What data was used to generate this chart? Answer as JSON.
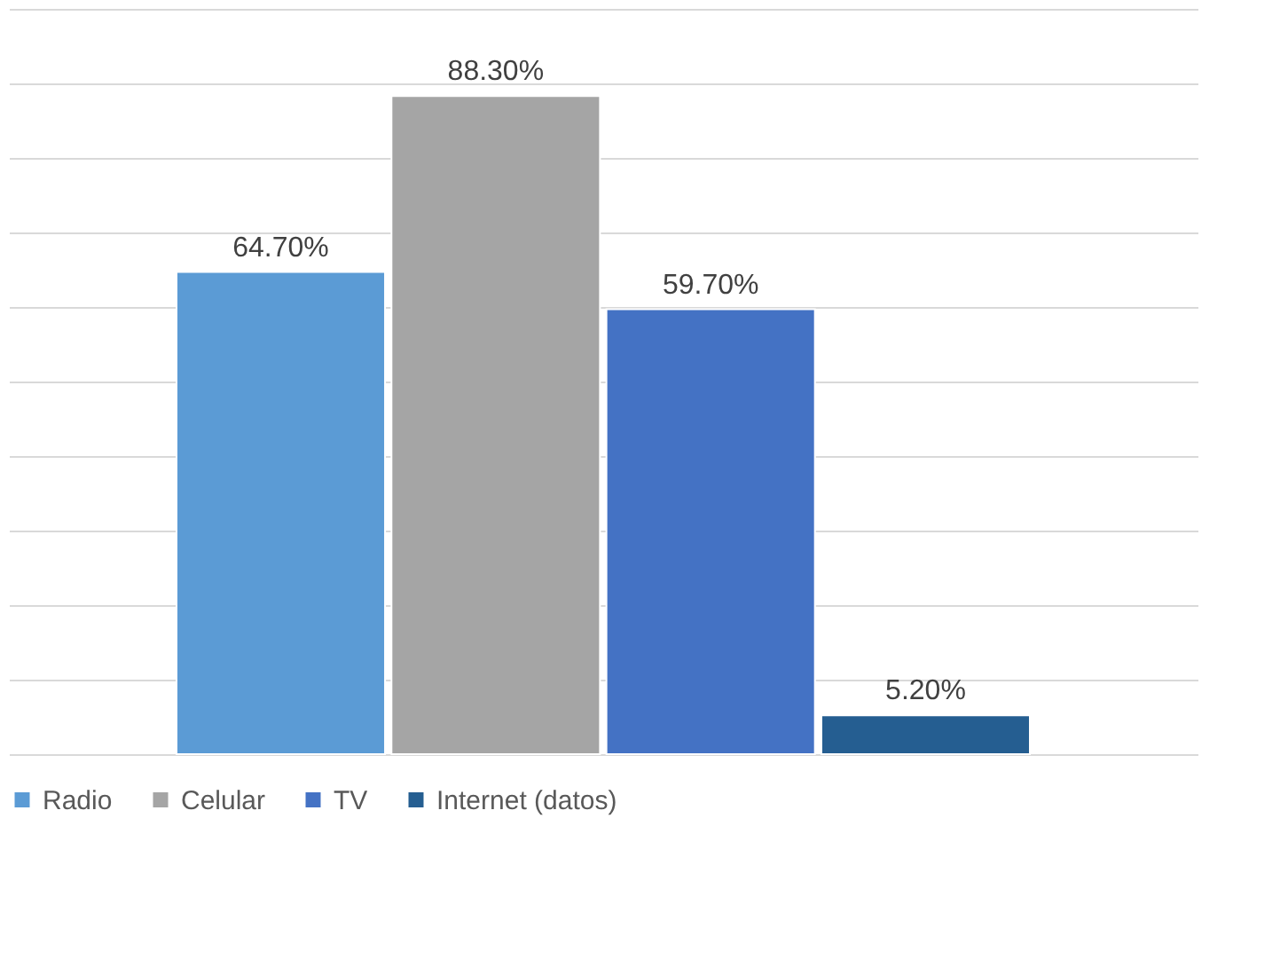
{
  "chart_data": {
    "type": "bar",
    "categories": [
      null
    ],
    "series": [
      {
        "name": "Radio",
        "color": "#5b9bd5",
        "values": [
          64.7
        ],
        "value_labels": [
          "64.70%"
        ]
      },
      {
        "name": "Celular",
        "color": "#a5a5a5",
        "values": [
          88.3
        ],
        "value_labels": [
          "88.30%"
        ]
      },
      {
        "name": "TV",
        "color": "#4472c4",
        "values": [
          59.7
        ],
        "value_labels": [
          "59.70%"
        ]
      },
      {
        "name": "Internet (datos)",
        "color": "#255e91",
        "values": [
          5.2
        ],
        "value_labels": [
          "5.20%"
        ]
      }
    ],
    "ylim": [
      0,
      100
    ],
    "yticks": [
      {
        "value": 0,
        "label": null
      },
      {
        "value": 10,
        "label": null
      },
      {
        "value": 20,
        "label": null
      },
      {
        "value": 30,
        "label": null
      },
      {
        "value": 40,
        "label": null
      },
      {
        "value": 50,
        "label": null
      },
      {
        "value": 60,
        "label": null
      },
      {
        "value": 70,
        "label": null
      },
      {
        "value": 80,
        "label": null
      },
      {
        "value": 90,
        "label": null
      },
      {
        "value": 100,
        "label": null
      }
    ],
    "tick_labels": false,
    "grid": "y",
    "legend": "bottom"
  }
}
